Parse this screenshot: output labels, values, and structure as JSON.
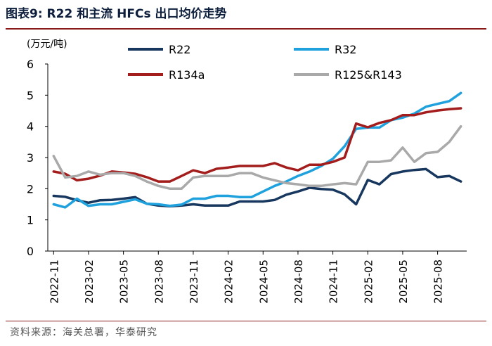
{
  "header": {
    "title": "图表9: R22 和主流 HFCs 出口均价走势"
  },
  "footer": {
    "source": "资料来源：海关总署，华泰研究"
  },
  "chart_data": {
    "type": "line",
    "title": "图表9: R22 和主流 HFCs 出口均价走势",
    "ylabel": "(万元/吨)",
    "xlabel": "",
    "ylim": [
      0,
      6
    ],
    "yticks": [
      0,
      1,
      2,
      3,
      4,
      5,
      6
    ],
    "grid": false,
    "legend_position": "top",
    "x": [
      "2022-11",
      "2022-12",
      "2023-01",
      "2023-02",
      "2023-03",
      "2023-04",
      "2023-05",
      "2023-06",
      "2023-07",
      "2023-08",
      "2023-09",
      "2023-10",
      "2023-11",
      "2023-12",
      "2024-01",
      "2024-02",
      "2024-03",
      "2024-04",
      "2024-05",
      "2024-06",
      "2024-07",
      "2024-08",
      "2024-09",
      "2024-10",
      "2024-11",
      "2024-12",
      "2025-01",
      "2025-02",
      "2025-03",
      "2025-04",
      "2025-05",
      "2025-06",
      "2025-07",
      "2025-08",
      "2025-09",
      "2025-10"
    ],
    "xtick_labels": [
      "2022-11",
      "2023-02",
      "2023-05",
      "2023-08",
      "2023-11",
      "2024-02",
      "2024-05",
      "2024-08",
      "2024-11",
      "2025-02",
      "2025-05",
      "2025-08"
    ],
    "series": [
      {
        "name": "R22",
        "color": "#17375e",
        "values": [
          1.77,
          1.74,
          1.63,
          1.55,
          1.63,
          1.64,
          1.68,
          1.73,
          1.52,
          1.46,
          1.44,
          1.46,
          1.5,
          1.46,
          1.46,
          1.46,
          1.59,
          1.59,
          1.59,
          1.64,
          1.81,
          1.91,
          2.03,
          1.99,
          1.97,
          1.82,
          1.5,
          2.28,
          2.14,
          2.47,
          2.55,
          2.6,
          2.63,
          2.37,
          2.41,
          2.23
        ]
      },
      {
        "name": "R32",
        "color": "#1ea1dc",
        "values": [
          1.5,
          1.4,
          1.68,
          1.45,
          1.5,
          1.5,
          1.58,
          1.66,
          1.52,
          1.5,
          1.45,
          1.49,
          1.68,
          1.68,
          1.77,
          1.77,
          1.73,
          1.73,
          1.91,
          2.09,
          2.23,
          2.41,
          2.55,
          2.73,
          2.96,
          3.36,
          3.92,
          3.96,
          3.96,
          4.2,
          4.28,
          4.41,
          4.63,
          4.72,
          4.81,
          5.07
        ]
      },
      {
        "name": "R134a",
        "color": "#a31d1d",
        "values": [
          2.55,
          2.48,
          2.27,
          2.32,
          2.42,
          2.55,
          2.52,
          2.48,
          2.37,
          2.23,
          2.23,
          2.41,
          2.59,
          2.5,
          2.64,
          2.68,
          2.73,
          2.73,
          2.73,
          2.82,
          2.68,
          2.59,
          2.77,
          2.77,
          2.86,
          3.0,
          4.09,
          3.97,
          4.11,
          4.2,
          4.36,
          4.36,
          4.45,
          4.51,
          4.55,
          4.58
        ]
      },
      {
        "name": "R125&R143",
        "color": "#a9a9a9",
        "values": [
          3.05,
          2.36,
          2.41,
          2.55,
          2.45,
          2.5,
          2.5,
          2.41,
          2.23,
          2.09,
          2.0,
          2.0,
          2.36,
          2.41,
          2.41,
          2.41,
          2.5,
          2.5,
          2.36,
          2.27,
          2.18,
          2.14,
          2.09,
          2.09,
          2.14,
          2.18,
          2.14,
          2.86,
          2.86,
          2.91,
          3.32,
          2.86,
          3.14,
          3.18,
          3.5,
          4.0
        ]
      }
    ]
  }
}
